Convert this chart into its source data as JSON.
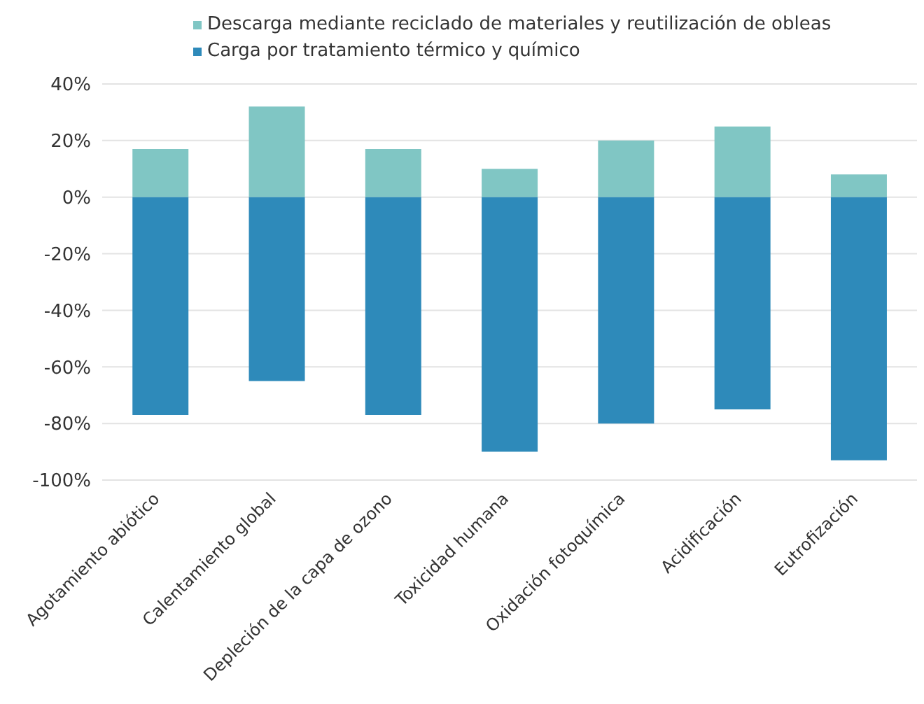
{
  "chart_data": {
    "type": "bar",
    "stacked": true,
    "categories": [
      "Agotamiento abiótico",
      "Calentamiento global",
      "Depleción de la capa de ozono",
      "Toxicidad humana",
      "Oxidación fotoquímica",
      "Acidificación",
      "Eutrofización"
    ],
    "series": [
      {
        "name": "Descarga mediante reciclado de materiales y reutilización de obleas",
        "color": "#80c6c4",
        "values": [
          17,
          32,
          17,
          10,
          20,
          25,
          8
        ]
      },
      {
        "name": "Carga por tratamiento térmico y químico",
        "color": "#2e8aba",
        "values": [
          -77,
          -65,
          -77,
          -90,
          -80,
          -75,
          -93
        ]
      }
    ],
    "ylim": [
      -100,
      40
    ],
    "yticks": [
      {
        "value": -100,
        "label": "-100%"
      },
      {
        "value": -80,
        "label": "-80%"
      },
      {
        "value": -60,
        "label": "-60%"
      },
      {
        "value": -40,
        "label": "-40%"
      },
      {
        "value": -20,
        "label": "-20%"
      },
      {
        "value": 0,
        "label": "0%"
      },
      {
        "value": 20,
        "label": "20%"
      },
      {
        "value": 40,
        "label": "40%"
      }
    ],
    "grid": "y",
    "legend": "top"
  }
}
